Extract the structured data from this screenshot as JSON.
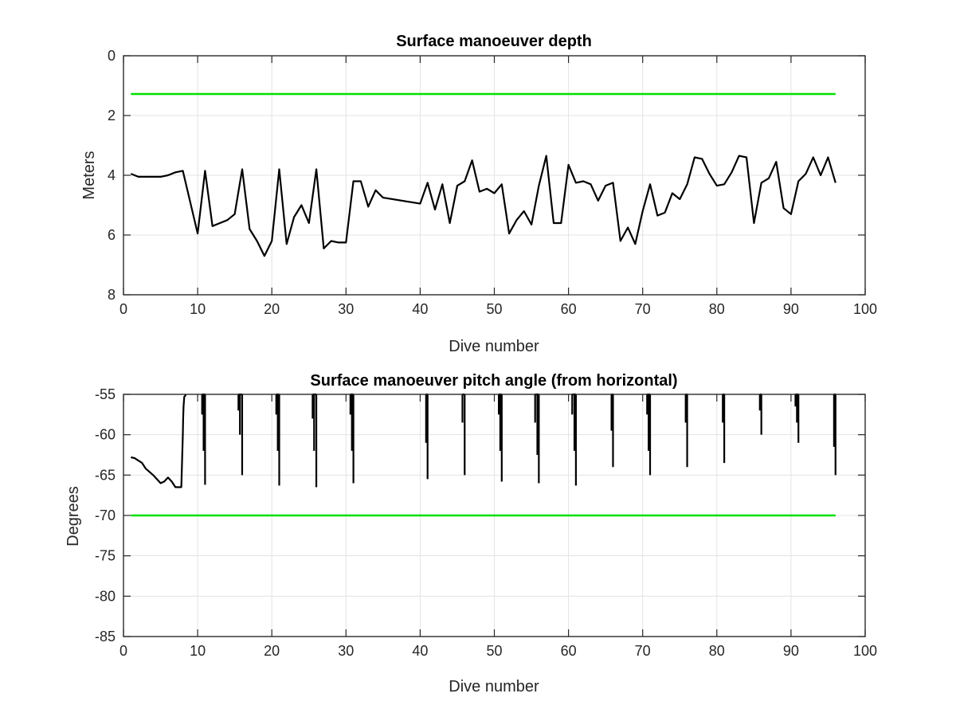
{
  "chart_data": [
    {
      "type": "line",
      "title": "Surface manoeuver depth",
      "xlabel": "Dive number",
      "ylabel": "Meters",
      "xlim": [
        0,
        100
      ],
      "ylim": [
        0,
        8
      ],
      "y_reversed": true,
      "xticks": [
        0,
        10,
        20,
        30,
        40,
        50,
        60,
        70,
        80,
        90,
        100
      ],
      "xtick_labels": [
        "0",
        "10",
        "20",
        "30",
        "40",
        "50",
        "60",
        "70",
        "80",
        "90",
        "100"
      ],
      "yticks": [
        0,
        2,
        4,
        6,
        8
      ],
      "ytick_labels": [
        "0",
        "2",
        "4",
        "6",
        "8"
      ],
      "grid": true,
      "series": [
        {
          "color": "#000000",
          "x": [
            1,
            2,
            3,
            4,
            5,
            6,
            7,
            8,
            9,
            10,
            11,
            12,
            13,
            14,
            15,
            16,
            17,
            18,
            19,
            20,
            21,
            22,
            23,
            24,
            25,
            26,
            27,
            28,
            29,
            30,
            31,
            32,
            33,
            34,
            35,
            40,
            41,
            42,
            43,
            44,
            45,
            46,
            47,
            48,
            49,
            50,
            51,
            52,
            53,
            54,
            55,
            56,
            57,
            58,
            59,
            60,
            61,
            62,
            63,
            64,
            65,
            66,
            67,
            68,
            69,
            70,
            71,
            72,
            73,
            74,
            75,
            76,
            77,
            78,
            79,
            80,
            81,
            82,
            83,
            84,
            85,
            86,
            87,
            88,
            89,
            90,
            91,
            92,
            93,
            94,
            95,
            96
          ],
          "y": [
            3.95,
            4.05,
            4.05,
            4.05,
            4.05,
            4.0,
            3.9,
            3.85,
            4.9,
            5.95,
            3.85,
            5.7,
            5.6,
            5.5,
            5.3,
            3.8,
            5.8,
            6.2,
            6.7,
            6.2,
            3.8,
            6.3,
            5.4,
            5.0,
            5.6,
            3.8,
            6.45,
            6.2,
            6.25,
            6.25,
            4.2,
            4.2,
            5.05,
            4.5,
            4.75,
            4.95,
            4.25,
            5.15,
            4.3,
            5.6,
            4.35,
            4.2,
            3.5,
            4.55,
            4.45,
            4.6,
            4.3,
            5.95,
            5.5,
            5.2,
            5.65,
            4.35,
            3.35,
            5.6,
            5.6,
            3.65,
            4.25,
            4.2,
            4.3,
            4.85,
            4.35,
            4.25,
            6.2,
            5.75,
            6.3,
            5.2,
            4.3,
            5.35,
            5.25,
            4.6,
            4.8,
            4.3,
            3.4,
            3.45,
            3.95,
            4.35,
            4.3,
            3.9,
            3.35,
            3.4,
            5.6,
            4.25,
            4.1,
            3.55,
            5.1,
            5.3,
            4.2,
            3.95,
            3.4,
            4.0,
            3.4,
            4.25
          ]
        },
        {
          "color": "#00e000",
          "x": [
            1,
            96
          ],
          "y": [
            1.28,
            1.28
          ]
        }
      ]
    },
    {
      "type": "line",
      "title": "Surface manoeuver pitch angle (from horizontal)",
      "xlabel": "Dive number",
      "ylabel": "Degrees",
      "xlim": [
        0,
        100
      ],
      "ylim": [
        -85,
        -55
      ],
      "xticks": [
        0,
        10,
        20,
        30,
        40,
        50,
        60,
        70,
        80,
        90,
        100
      ],
      "xtick_labels": [
        "0",
        "10",
        "20",
        "30",
        "40",
        "50",
        "60",
        "70",
        "80",
        "90",
        "100"
      ],
      "yticks": [
        -55,
        -60,
        -65,
        -70,
        -75,
        -80,
        -85
      ],
      "ytick_labels": [
        "-55",
        "-60",
        "-65",
        "-70",
        "-75",
        "-80",
        "-85"
      ],
      "grid": true,
      "series": [
        {
          "color": "#000000",
          "x": [
            1.0,
            1.5,
            2.0,
            2.5,
            3.0,
            4.0,
            5.0,
            5.5,
            6.0,
            6.5,
            7.0,
            7.5,
            7.8,
            8.0,
            8.05,
            8.1,
            8.2,
            8.3,
            8.4
          ],
          "y": [
            -62.8,
            -62.9,
            -63.2,
            -63.5,
            -64.2,
            -65.0,
            -66.0,
            -65.8,
            -65.3,
            -65.8,
            -66.5,
            -66.5,
            -66.5,
            -60.0,
            -58.0,
            -56.5,
            -55.3,
            -55.2,
            -55.0
          ]
        },
        {
          "color": "#000000",
          "type": "spikes",
          "x": [
            10.6,
            10.8,
            11.0,
            15.5,
            15.7,
            16.0,
            20.6,
            20.8,
            21.0,
            25.5,
            25.7,
            26.0,
            30.6,
            30.8,
            31.0,
            40.8,
            41.0,
            45.7,
            46.0,
            50.6,
            50.8,
            51.0,
            55.5,
            55.8,
            56.0,
            60.5,
            60.8,
            61.0,
            65.8,
            66.0,
            70.6,
            70.8,
            71.0,
            75.8,
            76.0,
            80.8,
            81.0,
            85.8,
            86.0,
            90.6,
            90.8,
            91.0,
            95.8,
            96.0
          ],
          "y": [
            -57.5,
            -62.0,
            -66.2,
            -57.0,
            -60.0,
            -65.0,
            -57.5,
            -62.0,
            -66.3,
            -58.0,
            -62.0,
            -66.5,
            -57.5,
            -62.0,
            -66.0,
            -61.0,
            -65.5,
            -58.5,
            -65.0,
            -57.5,
            -62.0,
            -65.8,
            -58.5,
            -62.5,
            -66.0,
            -57.5,
            -62.0,
            -66.3,
            -59.5,
            -64.0,
            -57.5,
            -62.0,
            -65.0,
            -58.5,
            -64.0,
            -58.5,
            -63.5,
            -57.0,
            -60.0,
            -56.5,
            -58.5,
            -61.0,
            -61.5,
            -65.0
          ]
        },
        {
          "color": "#00e000",
          "x": [
            1,
            96
          ],
          "y": [
            -70.0,
            -70.0
          ]
        }
      ]
    }
  ]
}
